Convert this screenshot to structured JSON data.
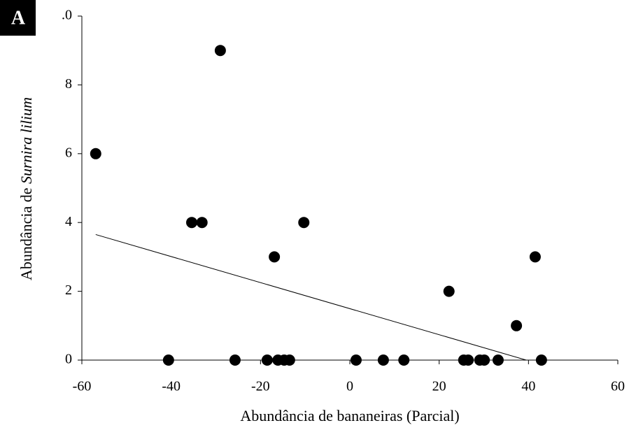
{
  "chart_data": {
    "type": "scatter",
    "panel_label": "A",
    "xlabel": "Abundância de bananeiras (Parcial)",
    "ylabel": "Abundância de",
    "ylabel_species": "Surnira lilium",
    "x": [
      -56.9,
      -40.6,
      -35.4,
      -33.1,
      -29.0,
      -25.7,
      -18.5,
      -16.9,
      -16.1,
      -14.7,
      -13.5,
      -10.3,
      1.4,
      7.5,
      12.1,
      22.2,
      25.5,
      26.5,
      29.1,
      30.1,
      33.2,
      37.3,
      41.5,
      42.9
    ],
    "values": [
      6,
      0,
      4,
      4,
      9,
      0,
      0,
      3,
      0,
      0,
      0,
      4,
      0,
      0,
      0,
      2,
      0,
      0,
      0,
      0,
      0,
      1,
      3,
      0
    ],
    "color": "#000000",
    "trendline": {
      "x": [
        -56.9,
        39.5
      ],
      "y": [
        3.65,
        0
      ]
    },
    "xlim": [
      -60,
      60
    ],
    "xticks": [
      -60,
      -40,
      -20,
      0,
      20,
      40,
      60
    ],
    "ylim": [
      0,
      10
    ],
    "yticks": [
      0,
      2,
      4,
      6,
      8,
      {
        "value": 10,
        "label": ".0"
      }
    ],
    "grid": false
  }
}
